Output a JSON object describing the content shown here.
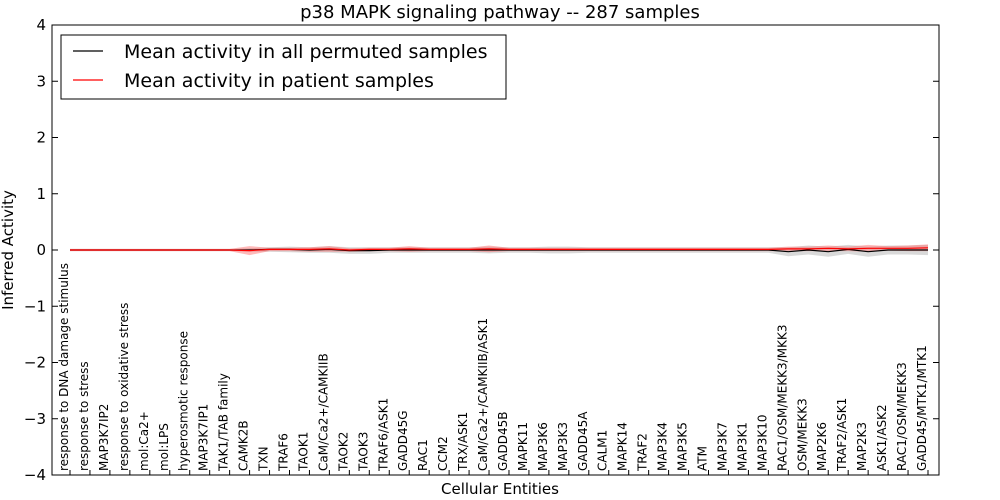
{
  "chart_data": {
    "type": "line",
    "title": "p38 MAPK signaling pathway -- 287 samples",
    "xlabel": "Cellular Entities",
    "ylabel": "Inferred Activity",
    "ylim": [
      -4,
      4
    ],
    "yticks": [
      "4",
      "3",
      "2",
      "1",
      "0",
      "−1",
      "−2",
      "−3",
      "−4"
    ],
    "ytick_values": [
      4,
      3,
      2,
      1,
      0,
      -1,
      -2,
      -3,
      -4
    ],
    "legend_position": "top-left",
    "colors": {
      "permuted": "#000000",
      "patient": "#ff0000",
      "permuted_band": "#cccccc",
      "patient_band": "#ff6666"
    },
    "categories": [
      "response to DNA damage stimulus",
      "response to stress",
      "MAP3K7IP2",
      "response to oxidative stress",
      "mol:Ca2+",
      "mol:LPS",
      "hyperosmotic response",
      "MAP3K7IP1",
      "TAK1/TAB family",
      "CAMK2B",
      "TXN",
      "TRAF6",
      "TAOK1",
      "CaM/Ca2+/CAMKIIB",
      "TAOK2",
      "TAOK3",
      "TRAF6/ASK1",
      "GADD45G",
      "RAC1",
      "CCM2",
      "TRX/ASK1",
      "CaM/Ca2+/CAMKIIB/ASK1",
      "GADD45B",
      "MAPK11",
      "MAP3K6",
      "MAP3K3",
      "GADD45A",
      "CALM1",
      "MAPK14",
      "TRAF2",
      "MAP3K4",
      "MAP3K5",
      "ATM",
      "MAP3K7",
      "MAP3K1",
      "MAP3K10",
      "RAC1/OSM/MEKK3/MKK3",
      "OSM/MEKK3",
      "MAP2K6",
      "TRAF2/ASK1",
      "MAP2K3",
      "ASK1/ASK2",
      "RAC1/OSM/MEKK3",
      "GADD45/MTK1/MTK1"
    ],
    "series": [
      {
        "name": "Mean activity in all permuted samples",
        "values": [
          0,
          0,
          0,
          0,
          0,
          0,
          0,
          0,
          0,
          0,
          0.01,
          0.01,
          0,
          0.01,
          -0.01,
          -0.01,
          0,
          0,
          0,
          0,
          0,
          0,
          0,
          0,
          0,
          0,
          0,
          0,
          0,
          0,
          0,
          0,
          0,
          0,
          0,
          0,
          -0.03,
          0,
          -0.03,
          0.01,
          -0.03,
          0,
          0,
          0
        ],
        "band": [
          0.02,
          0.02,
          0.02,
          0.02,
          0.02,
          0.02,
          0.02,
          0.02,
          0.02,
          0.03,
          0.04,
          0.05,
          0.05,
          0.06,
          0.06,
          0.06,
          0.05,
          0.05,
          0.05,
          0.05,
          0.05,
          0.06,
          0.05,
          0.05,
          0.06,
          0.06,
          0.05,
          0.05,
          0.05,
          0.05,
          0.05,
          0.05,
          0.05,
          0.05,
          0.05,
          0.05,
          0.08,
          0.08,
          0.09,
          0.08,
          0.09,
          0.08,
          0.08,
          0.09
        ]
      },
      {
        "name": "Mean activity in patient samples",
        "values": [
          0,
          0,
          0,
          0,
          0,
          0,
          0,
          0,
          0,
          -0.01,
          0.01,
          0.01,
          0.01,
          0.02,
          0,
          0.01,
          0.01,
          0.02,
          0.01,
          0.01,
          0.01,
          0.02,
          0.01,
          0.01,
          0.01,
          0.01,
          0.01,
          0.01,
          0.01,
          0.01,
          0.01,
          0.01,
          0.01,
          0.01,
          0.01,
          0.01,
          0.02,
          0.02,
          0.03,
          0.02,
          0.03,
          0.03,
          0.03,
          0.04
        ],
        "band": [
          0.02,
          0.02,
          0.02,
          0.02,
          0.02,
          0.02,
          0.02,
          0.02,
          0.02,
          0.08,
          0.03,
          0.03,
          0.04,
          0.05,
          0.03,
          0.03,
          0.03,
          0.05,
          0.03,
          0.03,
          0.03,
          0.06,
          0.03,
          0.03,
          0.03,
          0.03,
          0.03,
          0.03,
          0.03,
          0.03,
          0.03,
          0.03,
          0.03,
          0.03,
          0.03,
          0.03,
          0.04,
          0.04,
          0.05,
          0.04,
          0.06,
          0.04,
          0.05,
          0.06
        ]
      }
    ]
  }
}
